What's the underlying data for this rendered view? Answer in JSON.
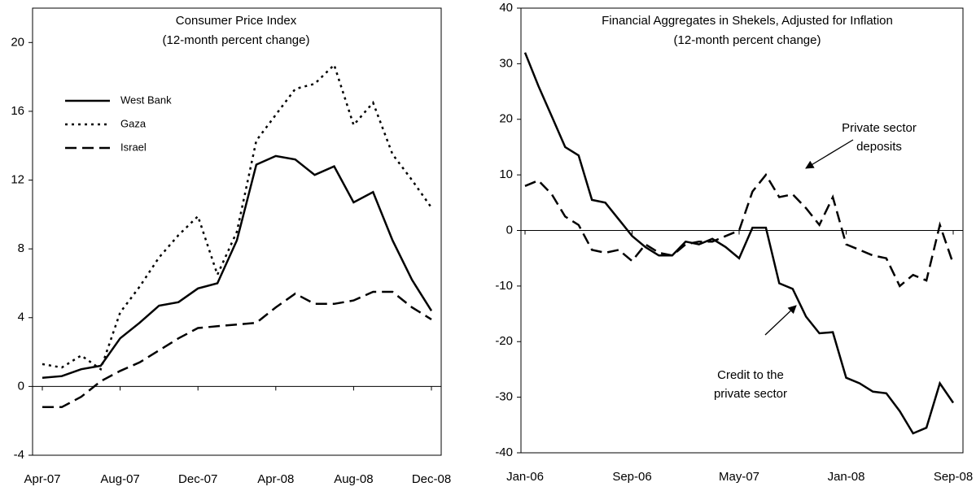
{
  "chart_data": [
    {
      "type": "line",
      "title": "Consumer Price Index",
      "subtitle": "(12-month percent change)",
      "categories": [
        "Apr-07",
        null,
        null,
        null,
        "Aug-07",
        null,
        null,
        null,
        "Dec-07",
        null,
        null,
        null,
        "Apr-08",
        null,
        null,
        null,
        "Aug-08",
        null,
        null,
        null,
        "Dec-08"
      ],
      "series": [
        {
          "name": "West Bank",
          "color": "#000000",
          "dash": "solid",
          "values": [
            0.5,
            0.6,
            1.0,
            1.2,
            2.8,
            3.7,
            4.7,
            4.9,
            5.7,
            6.0,
            8.5,
            12.9,
            13.4,
            13.2,
            12.3,
            12.8,
            10.7,
            11.3,
            8.5,
            6.2,
            4.4
          ]
        },
        {
          "name": "Gaza",
          "color": "#000000",
          "dash": "dotted",
          "values": [
            1.3,
            1.1,
            1.8,
            1.0,
            4.3,
            5.8,
            7.5,
            8.8,
            9.9,
            6.5,
            9.0,
            14.3,
            15.8,
            17.3,
            17.6,
            18.7,
            15.2,
            16.5,
            13.5,
            12.0,
            10.4
          ]
        },
        {
          "name": "Israel",
          "color": "#000000",
          "dash": "dashed",
          "values": [
            -1.2,
            -1.2,
            -0.6,
            0.3,
            0.9,
            1.4,
            2.1,
            2.8,
            3.4,
            3.5,
            3.6,
            3.7,
            4.6,
            5.4,
            4.8,
            4.8,
            5.0,
            5.5,
            5.5,
            4.6,
            3.9
          ]
        }
      ],
      "ylim": [
        -4,
        22
      ],
      "yticks": [
        -4,
        0,
        4,
        8,
        12,
        16,
        20
      ],
      "legend": "upper left"
    },
    {
      "type": "line",
      "title": "Financial Aggregates in Shekels, Adjusted for Inflation",
      "subtitle": "(12-month percent change)",
      "categories": [
        "Jan-06",
        null,
        null,
        null,
        null,
        null,
        null,
        null,
        "Sep-06",
        null,
        null,
        null,
        null,
        null,
        null,
        null,
        "May-07",
        null,
        null,
        null,
        null,
        null,
        null,
        null,
        "Jan-08",
        null,
        null,
        null,
        null,
        null,
        null,
        null,
        "Sep-08"
      ],
      "series": [
        {
          "color": "#000000",
          "dash": "solid",
          "values": [
            32,
            26,
            20.5,
            15,
            13.5,
            5.5,
            5,
            2,
            -1,
            -3,
            -4.5,
            -4.5,
            -2,
            -2.5,
            -1.5,
            -3,
            -5,
            0.5,
            0.5,
            -9.5,
            -10.5,
            -15.5,
            -18.5,
            -18.3,
            -26.5,
            -27.5,
            -29,
            -29.3,
            -32.5,
            -36.5,
            -35.5,
            -27.5,
            -31
          ]
        },
        {
          "color": "#000000",
          "dash": "dashed",
          "values": [
            8,
            9,
            6.5,
            2.5,
            1,
            -3.5,
            -4,
            -3.5,
            -5.5,
            -2.5,
            -4,
            -4.5,
            -2.5,
            -2,
            -2,
            -1,
            0,
            7,
            10,
            6,
            6.5,
            4,
            1,
            6,
            -2.5,
            -3.5,
            -4.5,
            -5,
            -10,
            -8,
            -9,
            1,
            -6
          ]
        }
      ],
      "ylim": [
        -40,
        40
      ],
      "yticks": [
        -40,
        -30,
        -20,
        -10,
        0,
        10,
        20,
        30,
        40
      ],
      "annotations": [
        {
          "lines": [
            "Private sector",
            "deposits"
          ]
        },
        {
          "lines": [
            "Credit to the",
            "private sector"
          ]
        }
      ]
    }
  ]
}
